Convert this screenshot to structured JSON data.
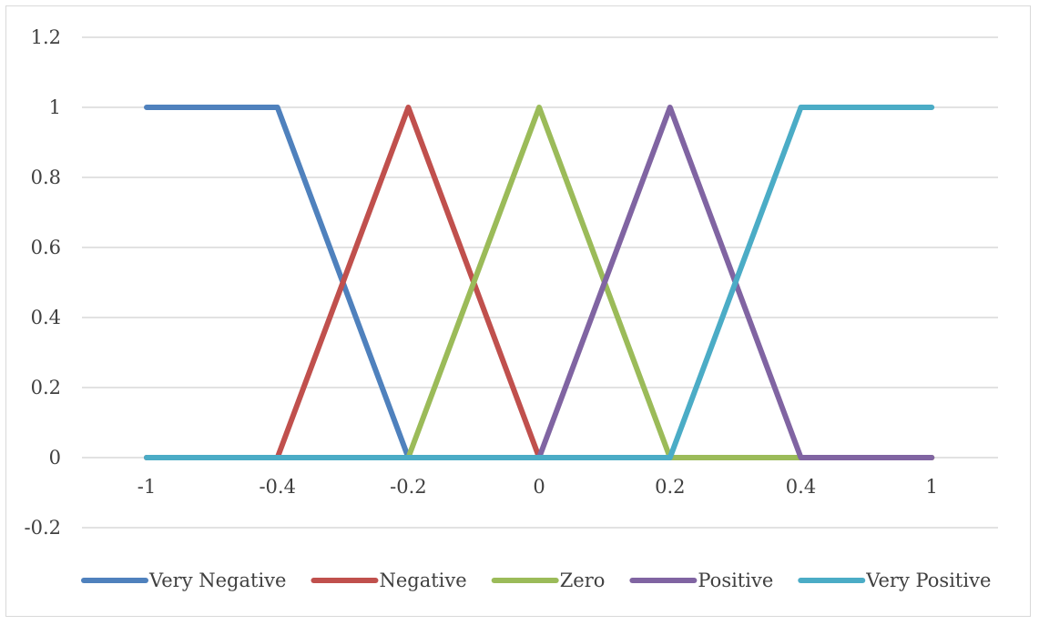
{
  "chart_data": {
    "type": "line",
    "title": "",
    "xlabel": "",
    "ylabel": "",
    "categories": [
      "-1",
      "-0.4",
      "-0.2",
      "0",
      "0.2",
      "0.4",
      "1"
    ],
    "x_tick_labels": [
      "-1",
      "-0.4",
      "-0.2",
      "0",
      "0.2",
      "0.4",
      "1"
    ],
    "y_tick_labels": [
      "-0.2",
      "0",
      "0.2",
      "0.4",
      "0.6",
      "0.8",
      "1",
      "1.2"
    ],
    "y_ticks": [
      -0.2,
      0,
      0.2,
      0.4,
      0.6,
      0.8,
      1,
      1.2
    ],
    "ylim": [
      -0.2,
      1.2
    ],
    "grid": true,
    "legend_position": "bottom",
    "series": [
      {
        "name": "Very Negative",
        "color": "#4F81BD",
        "values": [
          1,
          1,
          0,
          0,
          0,
          0,
          0
        ]
      },
      {
        "name": "Negative",
        "color": "#C0504D",
        "values": [
          0,
          0,
          1,
          0,
          0,
          0,
          0
        ]
      },
      {
        "name": "Zero",
        "color": "#9BBB59",
        "values": [
          0,
          0,
          0,
          1,
          0,
          0,
          0
        ]
      },
      {
        "name": "Positive",
        "color": "#8064A2",
        "values": [
          0,
          0,
          0,
          0,
          1,
          0,
          0
        ]
      },
      {
        "name": "Very Positive",
        "color": "#4BACC6",
        "values": [
          0,
          0,
          0,
          0,
          0,
          1,
          1
        ]
      }
    ]
  }
}
